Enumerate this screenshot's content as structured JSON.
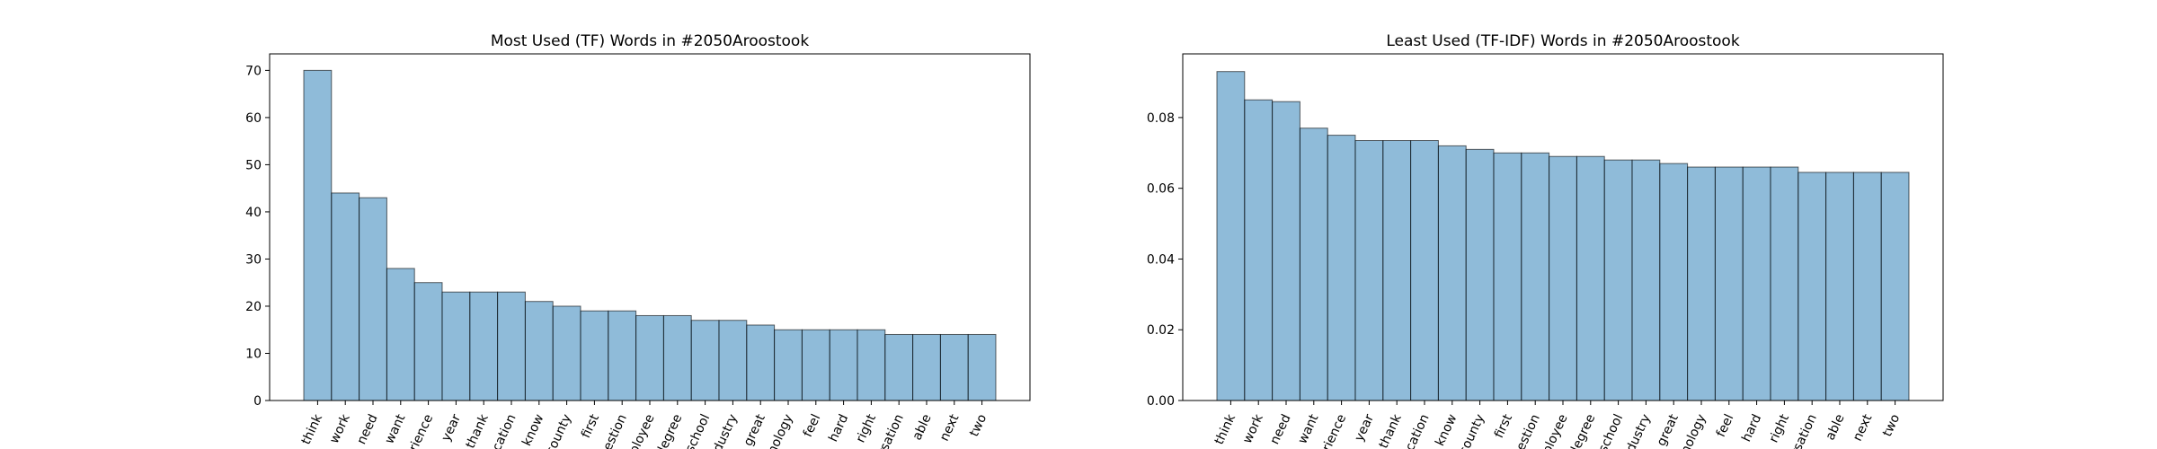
{
  "chart_data": [
    {
      "type": "bar",
      "title": "Most Used (TF) Words in #2050Aroostook",
      "xlabel": "",
      "ylabel": "",
      "ylim": [
        0,
        73.5
      ],
      "yticks": [
        0,
        10,
        20,
        30,
        40,
        50,
        60,
        70
      ],
      "categories": [
        "think",
        "work",
        "need",
        "want",
        "experience",
        "year",
        "thank",
        "education",
        "know",
        "county",
        "first",
        "question",
        "employee",
        "degree",
        "school",
        "industry",
        "great",
        "technology",
        "feel",
        "hard",
        "right",
        "conversation",
        "able",
        "next",
        "two"
      ],
      "category_labels": [
        "think",
        "work",
        "need",
        "want",
        "rience",
        "year",
        "thank",
        "ucation",
        "know",
        "county",
        "first",
        "uestion",
        "nployee",
        "degree",
        "school",
        "dustry",
        "great",
        "nology",
        "feel",
        "hard",
        "right",
        "ersation",
        "able",
        "next",
        "two"
      ],
      "values": [
        70,
        44,
        43,
        28,
        25,
        23,
        23,
        23,
        21,
        20,
        19,
        19,
        18,
        18,
        17,
        17,
        16,
        15,
        15,
        15,
        15,
        14,
        14,
        14,
        14
      ],
      "grid": false,
      "color": "#1f77b4"
    },
    {
      "type": "bar",
      "title": "Least Used (TF-IDF) Words in #2050Aroostook",
      "xlabel": "",
      "ylabel": "",
      "ylim": [
        0,
        0.098
      ],
      "yticks": [
        0.0,
        0.02,
        0.04,
        0.06,
        0.08
      ],
      "ytick_labels": [
        "0.00",
        "0.02",
        "0.04",
        "0.06",
        "0.08"
      ],
      "categories": [
        "think",
        "work",
        "need",
        "want",
        "experience",
        "year",
        "thank",
        "education",
        "know",
        "county",
        "first",
        "question",
        "employee",
        "degree",
        "school",
        "industry",
        "great",
        "technology",
        "feel",
        "hard",
        "right",
        "conversation",
        "able",
        "next",
        "two"
      ],
      "category_labels": [
        "think",
        "work",
        "need",
        "want",
        "rience",
        "year",
        "thank",
        "ucation",
        "know",
        "county",
        "first",
        "uestion",
        "nployee",
        "degree",
        "school",
        "dustry",
        "great",
        "nology",
        "feel",
        "hard",
        "right",
        "ersation",
        "able",
        "next",
        "two"
      ],
      "values": [
        0.093,
        0.085,
        0.0845,
        0.077,
        0.075,
        0.0735,
        0.0735,
        0.0735,
        0.072,
        0.071,
        0.07,
        0.07,
        0.069,
        0.069,
        0.068,
        0.068,
        0.067,
        0.066,
        0.066,
        0.066,
        0.066,
        0.0645,
        0.0645,
        0.0645,
        0.0645
      ],
      "grid": false,
      "color": "#1f77b4"
    }
  ]
}
